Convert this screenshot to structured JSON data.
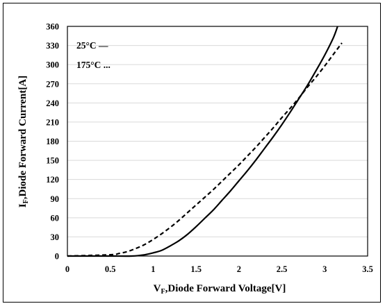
{
  "chart_data": {
    "type": "line",
    "title": "",
    "xlabel": {
      "main": "V",
      "sub": "F",
      "rest": ",Diode Forward Voltage[V]"
    },
    "ylabel": {
      "main": "I",
      "sub": "F",
      "rest": ",Diode Forward Current[A]"
    },
    "xlim": [
      0,
      3.5
    ],
    "ylim": [
      0,
      360
    ],
    "xticks": [
      0,
      0.5,
      1,
      1.5,
      2,
      2.5,
      3,
      3.5
    ],
    "xtick_labels": [
      "0",
      "0.5",
      "1",
      "1.5",
      "2",
      "2.5",
      "3",
      "3.5"
    ],
    "yticks": [
      0,
      30,
      60,
      90,
      120,
      150,
      180,
      210,
      240,
      270,
      300,
      330,
      360
    ],
    "ytick_labels": [
      "0",
      "30",
      "60",
      "90",
      "120",
      "150",
      "180",
      "210",
      "240",
      "270",
      "300",
      "330",
      "360"
    ],
    "grid": "horizontal",
    "legend_placement": "top-left",
    "series": [
      {
        "name": "25°C —",
        "style": "solid",
        "color": "#000000",
        "x": [
          0,
          0.5,
          0.75,
          0.9,
          1.0,
          1.1,
          1.2,
          1.3,
          1.4,
          1.5,
          1.6,
          1.7,
          1.8,
          1.9,
          2.0,
          2.1,
          2.2,
          2.3,
          2.4,
          2.5,
          2.6,
          2.7,
          2.8,
          2.9,
          3.0,
          3.1,
          3.15
        ],
        "y": [
          0,
          0,
          0,
          2,
          5,
          9,
          16,
          24,
          34,
          46,
          59,
          72,
          87,
          102,
          118,
          134,
          151,
          169,
          187,
          206,
          226,
          247,
          268,
          291,
          315,
          342,
          360
        ]
      },
      {
        "name": "175°C ...",
        "style": "dashed",
        "color": "#000000",
        "x": [
          0,
          0.5,
          0.6,
          0.7,
          0.8,
          0.9,
          1.0,
          1.1,
          1.2,
          1.3,
          1.4,
          1.5,
          1.6,
          1.7,
          1.8,
          1.9,
          2.0,
          2.1,
          2.2,
          2.3,
          2.4,
          2.5,
          2.6,
          2.7,
          2.8,
          2.9,
          3.0,
          3.1,
          3.2
        ],
        "y": [
          0,
          2,
          4,
          7,
          12,
          18,
          26,
          35,
          45,
          56,
          68,
          80,
          92,
          104,
          117,
          130,
          143,
          157,
          171,
          186,
          201,
          217,
          232,
          248,
          265,
          281,
          298,
          316,
          334
        ]
      }
    ]
  }
}
